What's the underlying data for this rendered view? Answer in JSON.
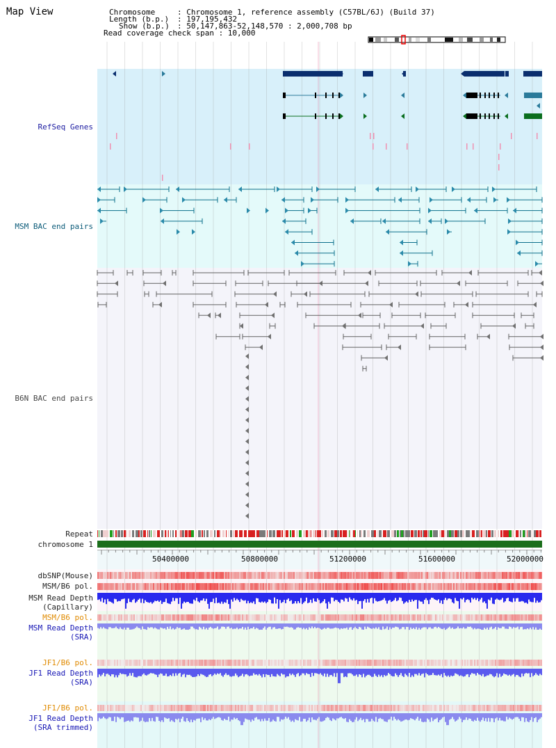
{
  "page": {
    "title": "Map View"
  },
  "info": {
    "chromosome_key": "Chromosome",
    "chromosome_val": ": Chromosome 1, reference assembly (C57BL/6J) (Build 37)",
    "length_key": "Length (b.p.)",
    "length_val": ": 197,195,432",
    "show_key": "Show (b.p.)",
    "show_val": ": 50,147,863-52,148,570 : 2,000,708 bp",
    "coverage": "Read coverage check span : 10,000"
  },
  "tracks": {
    "refseq": "RefSeq Genes",
    "msm_bac": "MSM BAC end pairs",
    "b6n_bac": "B6N BAC end pairs",
    "repeat": "Repeat",
    "chromosome": "chromosome 1",
    "dbsnp": "dbSNP(Mouse)",
    "msm_b6_pol_1": "MSM/B6 pol.",
    "msm_depth_cap_1": "MSM Read Depth",
    "msm_depth_cap_2": "(Capillary)",
    "msm_b6_pol_2": "MSM/B6 pol.",
    "msm_depth_sra_1": "MSM Read Depth",
    "msm_depth_sra_2": "(SRA)",
    "jf1_pol_1": "JF1/B6 pol.",
    "jf1_depth_1": "JF1 Read Depth",
    "jf1_depth_2": "(SRA)",
    "jf1_pol_2": "JF1/B6 pol.",
    "jf1_trim_1": "JF1 Read Depth",
    "jf1_trim_2": "(SRA trimmed)"
  },
  "axis": {
    "ticks": [
      "50400000",
      "50800000",
      "51200000",
      "51600000",
      "52000000"
    ]
  },
  "colors": {
    "refseq_bg": "#d8f0fa",
    "msm_bg": "#e4fafa",
    "b6n_bg": "#f4f4fa",
    "gene_navy": "#0a2e6e",
    "gene_teal": "#2a7a9a",
    "gene_green": "#0a6e1e",
    "msm_line": "#0a6e8a",
    "b6n_line": "#606060",
    "chrom_green": "#1a6e1a",
    "snp_red": "#e83030",
    "depth_blue": "#2a2aee",
    "depth_light": "#8a8aee",
    "depth_mid": "#5a5aee"
  }
}
